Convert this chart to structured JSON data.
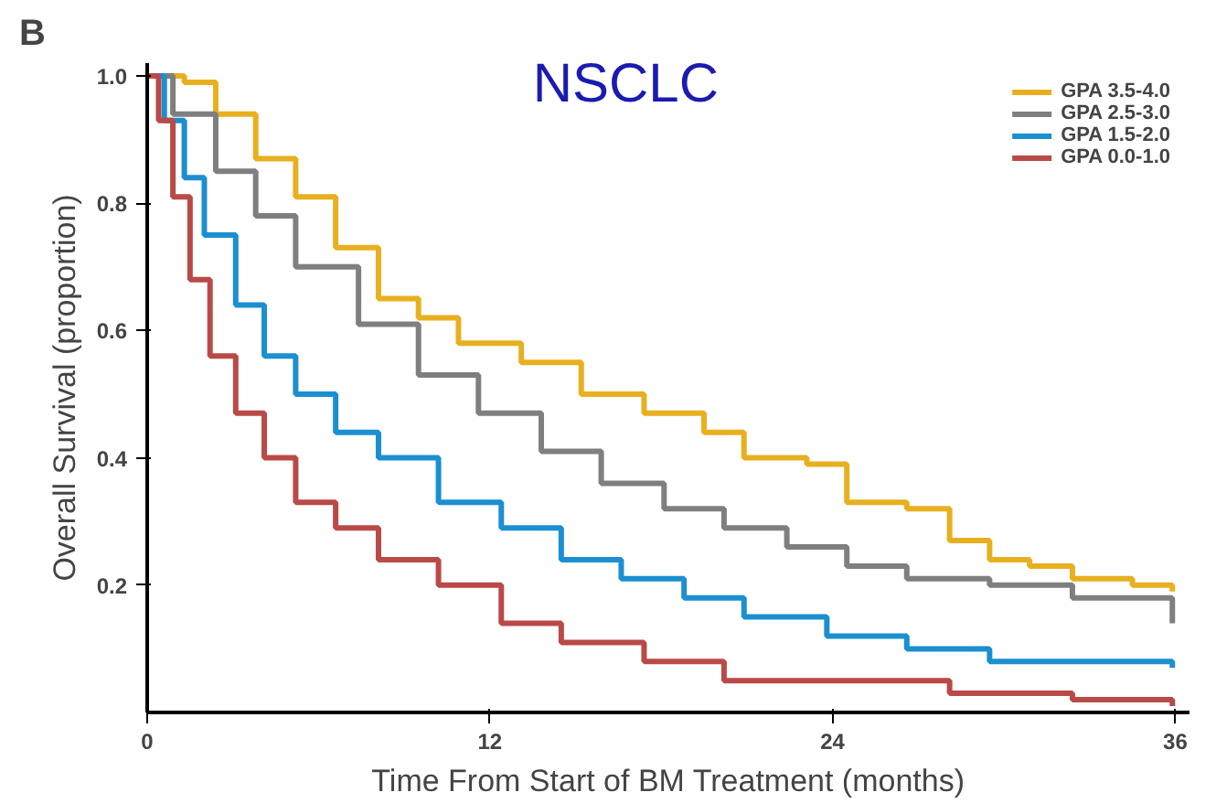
{
  "chart_data": {
    "type": "step",
    "title": "NSCLC",
    "annotations": [
      "B"
    ],
    "xlabel": "Time From Start of BM Treatment (months)",
    "ylabel": "Overall Survival (proportion)",
    "xlim": [
      0,
      36.5
    ],
    "xticks": [
      0,
      12,
      24,
      36
    ],
    "ylim": [
      0,
      1.02
    ],
    "yticks": [
      0.2,
      0.4,
      0.6,
      0.8,
      {
        "value": 1,
        "label": "1.0"
      }
    ],
    "grid": false,
    "legend": "top right",
    "line_style": "solid",
    "marker": "none",
    "series": [
      {
        "name": "GPA 3.5-4.0",
        "color": "#e8b020",
        "x": [
          0,
          1.3,
          2.4,
          3.8,
          5.2,
          6.6,
          8.1,
          9.5,
          10.9,
          13.1,
          15.2,
          17.4,
          19.5,
          20.9,
          23.1,
          24.5,
          26.6,
          28.1,
          29.5,
          30.9,
          32.4,
          34.5,
          35.9
        ],
        "values": [
          1.0,
          0.99,
          0.94,
          0.87,
          0.81,
          0.73,
          0.65,
          0.62,
          0.58,
          0.55,
          0.5,
          0.47,
          0.44,
          0.4,
          0.39,
          0.33,
          0.32,
          0.27,
          0.24,
          0.23,
          0.21,
          0.2,
          0.19
        ]
      },
      {
        "name": "GPA 2.5-3.0",
        "color": "#7f7f7f",
        "x": [
          0,
          0.9,
          2.4,
          3.8,
          5.2,
          7.4,
          9.5,
          11.6,
          13.8,
          15.9,
          18.1,
          20.2,
          22.4,
          24.5,
          26.6,
          29.5,
          32.4,
          35.9
        ],
        "values": [
          1.0,
          0.94,
          0.85,
          0.78,
          0.7,
          0.61,
          0.53,
          0.47,
          0.41,
          0.36,
          0.32,
          0.29,
          0.26,
          0.23,
          0.21,
          0.2,
          0.18,
          0.14
        ]
      },
      {
        "name": "GPA 1.5-2.0",
        "color": "#1b8fd0",
        "x": [
          0,
          0.6,
          1.3,
          2.0,
          3.1,
          4.1,
          5.2,
          6.6,
          8.1,
          10.2,
          12.4,
          14.5,
          16.6,
          18.8,
          20.9,
          23.8,
          26.6,
          29.5,
          32.4,
          35.9
        ],
        "values": [
          1.0,
          0.93,
          0.84,
          0.75,
          0.64,
          0.56,
          0.5,
          0.44,
          0.4,
          0.33,
          0.29,
          0.24,
          0.21,
          0.18,
          0.15,
          0.12,
          0.1,
          0.08,
          0.08,
          0.07
        ]
      },
      {
        "name": "GPA 0.0-1.0",
        "color": "#b94a48",
        "x": [
          0,
          0.4,
          0.9,
          1.5,
          2.2,
          3.1,
          4.1,
          5.2,
          6.6,
          8.1,
          10.2,
          12.4,
          14.5,
          17.4,
          20.2,
          23.8,
          28.1,
          32.4,
          35.9
        ],
        "values": [
          1.0,
          0.93,
          0.81,
          0.68,
          0.56,
          0.47,
          0.4,
          0.33,
          0.29,
          0.24,
          0.2,
          0.14,
          0.11,
          0.08,
          0.05,
          0.05,
          0.03,
          0.02,
          0.01
        ]
      }
    ]
  }
}
